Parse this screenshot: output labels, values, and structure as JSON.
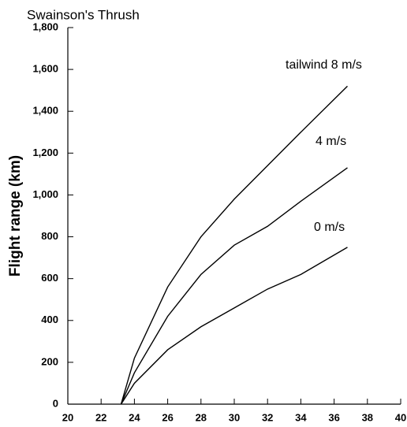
{
  "chart_data": {
    "type": "line",
    "title": "Swainson's Thrush",
    "y_label": "Flight range (km)",
    "x": [
      23.2,
      24,
      26,
      28,
      30,
      32,
      34,
      36.8
    ],
    "series": [
      {
        "name": "tailwind 8 m/s",
        "color": "#000000",
        "values": [
          0,
          220,
          560,
          800,
          980,
          1140,
          1300,
          1520
        ]
      },
      {
        "name": "4 m/s",
        "color": "#000000",
        "values": [
          0,
          150,
          420,
          620,
          760,
          850,
          970,
          1130
        ]
      },
      {
        "name": "0 m/s",
        "color": "#000000",
        "values": [
          0,
          100,
          260,
          370,
          460,
          550,
          620,
          750
        ]
      }
    ],
    "xlim": [
      20,
      40
    ],
    "xticks": [
      20,
      22,
      24,
      26,
      28,
      30,
      32,
      34,
      36,
      38,
      40
    ],
    "ylim": [
      0,
      1800
    ],
    "yticks": [
      0,
      200,
      400,
      600,
      800,
      {
        "value": 1000,
        "label": "1,000"
      },
      {
        "value": 1200,
        "label": "1,200"
      },
      {
        "value": 1400,
        "label": "1,400"
      },
      {
        "value": 1600,
        "label": "1,600"
      },
      {
        "value": 1800,
        "label": "1,800"
      }
    ]
  }
}
